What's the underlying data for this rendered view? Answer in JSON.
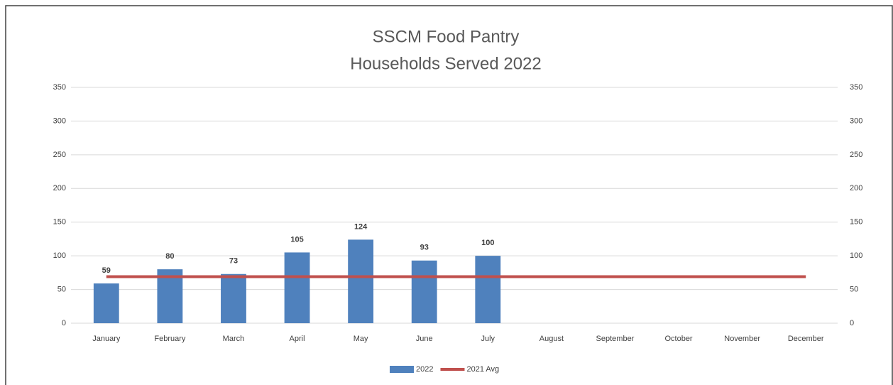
{
  "chart_data": {
    "type": "bar_line",
    "title": "SSCM Food Pantry",
    "subtitle": "Households Served 2022",
    "categories": [
      "January",
      "February",
      "March",
      "April",
      "May",
      "June",
      "July",
      "August",
      "September",
      "October",
      "November",
      "December"
    ],
    "series": [
      {
        "name": "2022",
        "type": "bar",
        "color": "#4f81bd",
        "values": [
          59,
          80,
          73,
          105,
          124,
          93,
          100,
          null,
          null,
          null,
          null,
          null
        ]
      },
      {
        "name": "2021 Avg",
        "type": "line",
        "axis": "y2",
        "color": "#c0504d",
        "values": [
          69,
          69,
          69,
          69,
          69,
          69,
          69,
          69,
          69,
          69,
          69,
          69
        ]
      }
    ],
    "ylim": [
      0,
      350
    ],
    "yticks": [
      0,
      50,
      100,
      150,
      200,
      250,
      300,
      350
    ],
    "y2lim": [
      0,
      350
    ],
    "y2ticks": [
      0,
      50,
      100,
      150,
      200,
      250,
      300,
      350
    ],
    "grid": true,
    "legend": "bottom"
  }
}
